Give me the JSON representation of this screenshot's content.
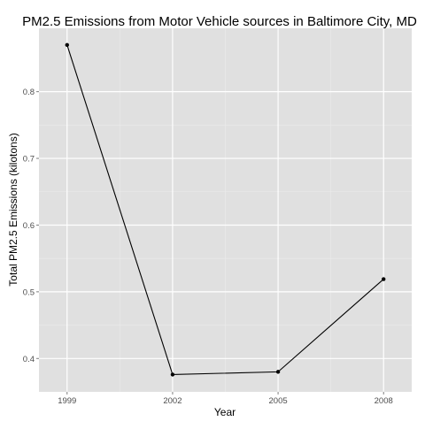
{
  "chart_data": {
    "type": "line",
    "title": "PM2.5 Emissions from Motor Vehicle sources in Baltimore City, MD",
    "xlabel": "Year",
    "ylabel": "Total PM2.5 Emissions (kilotons)",
    "x": [
      1999,
      2002,
      2005,
      2008
    ],
    "series": [
      {
        "values": [
          0.87,
          0.376,
          0.38,
          0.519
        ]
      }
    ],
    "x_ticks": [
      1999,
      2002,
      2005,
      2008
    ],
    "x_tick_labels": [
      "1999",
      "2002",
      "2005",
      "2008"
    ],
    "y_ticks": [
      0.4,
      0.5,
      0.6,
      0.7,
      0.8
    ],
    "y_tick_labels": [
      "0.4",
      "0.5",
      "0.6",
      "0.7",
      "0.8"
    ],
    "xlim": [
      1998.2,
      2008.8
    ],
    "ylim": [
      0.35,
      0.895
    ],
    "grid": true,
    "colors": {
      "panel": "#e0e0e0",
      "grid_major": "#ffffff",
      "grid_minor": "#ebebeb",
      "line": "#000000",
      "text": "#000000",
      "tick_text": "#4d4d4d"
    }
  }
}
